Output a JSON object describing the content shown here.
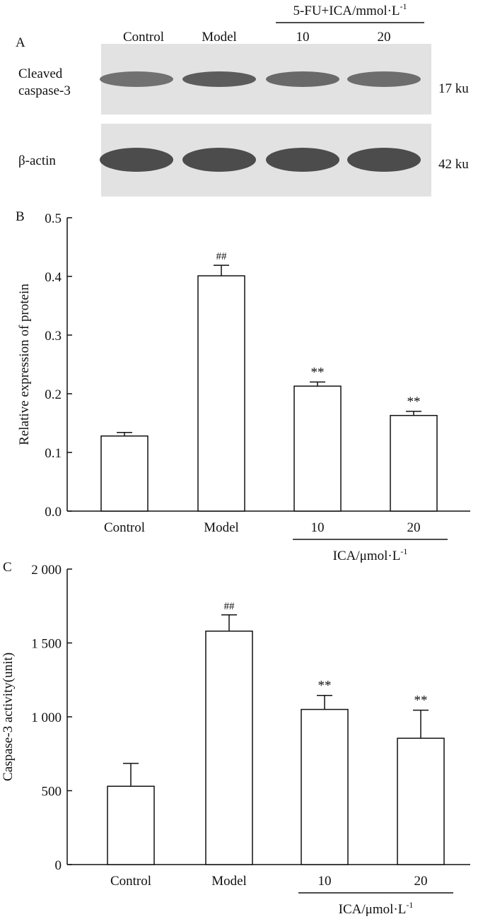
{
  "colors": {
    "ink": "#111111",
    "bar_fill": "#ffffff",
    "blot_bg": "#e2e2e2",
    "band_dark": "#4a4a4a",
    "band_mid": "#8a8a8a"
  },
  "panel_a": {
    "letter": "A",
    "lane_labels": [
      "Control",
      "Model",
      "10",
      "20"
    ],
    "header": {
      "prefix": "5-FU+ICA/mmol·L",
      "sup": "-1"
    },
    "blots": [
      {
        "label_lines": [
          "Cleaved",
          "caspase-3"
        ],
        "size": "17 ku",
        "band_intensity": [
          0.55,
          0.8,
          0.65,
          0.6
        ]
      },
      {
        "label_lines": [
          "β-actin"
        ],
        "size": "42 ku",
        "band_intensity": [
          1.0,
          1.0,
          1.0,
          1.0
        ]
      }
    ]
  },
  "chart_data": [
    {
      "type": "bar",
      "panel": "B",
      "categories": [
        "Control",
        "Model",
        "10",
        "20"
      ],
      "values": [
        0.128,
        0.401,
        0.213,
        0.163
      ],
      "errors": [
        0.006,
        0.018,
        0.007,
        0.007
      ],
      "significance": [
        "",
        "##",
        "**",
        "**"
      ],
      "ylabel": "Relative expression of protein",
      "ylim": [
        0,
        0.5
      ],
      "yticks": [
        0.0,
        0.1,
        0.2,
        0.3,
        0.4,
        0.5
      ],
      "ytick_labels": [
        "0.0",
        "0.1",
        "0.2",
        "0.3",
        "0.4",
        "0.5"
      ],
      "group_label": {
        "prefix": "ICA/μmol·L",
        "sup": "-1"
      }
    },
    {
      "type": "bar",
      "panel": "C",
      "categories": [
        "Control",
        "Model",
        "10",
        "20"
      ],
      "values": [
        530,
        1580,
        1050,
        855
      ],
      "errors": [
        155,
        110,
        95,
        190
      ],
      "significance": [
        "",
        "##",
        "**",
        "**"
      ],
      "ylabel": "Caspase-3 activity(unit)",
      "ylim": [
        0,
        2000
      ],
      "yticks": [
        0,
        500,
        1000,
        1500,
        2000
      ],
      "ytick_labels": [
        "0",
        "500",
        "1 000",
        "1 500",
        "2 000"
      ],
      "group_label": {
        "prefix": "ICA/μmol·L",
        "sup": "-1"
      }
    }
  ]
}
